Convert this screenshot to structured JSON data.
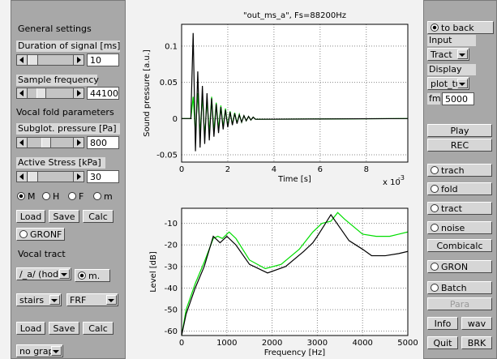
{
  "left_panel": {
    "general_settings": "General settings",
    "duration_label": "Duration of signal [ms]",
    "duration_value": "10",
    "sample_freq_label": "Sample frequency",
    "sample_freq_value": "44100",
    "vocal_fold_title": "Vocal fold parameters",
    "subglot_label": "Subglot. pressure [Pa]",
    "subglot_value": "800",
    "stress_label": "Active Stress [kPa]",
    "stress_value": "30",
    "model_radios": [
      "M",
      "H",
      "F",
      "m"
    ],
    "buttons_1": [
      "Load",
      "Save",
      "Calc"
    ],
    "gronf": "GRONF",
    "vocal_tract_title": "Vocal tract",
    "vowel_popup": "/_a/ (hod)",
    "m_radio": "m.",
    "stairs_popup": "stairs",
    "frf_popup": "FRF",
    "buttons_2": [
      "Load",
      "Save",
      "Calc"
    ],
    "graph_popup": "no graph"
  },
  "right_panel": {
    "to_back": "to back",
    "input_label": "Input",
    "input_popup": "Tract",
    "display_label": "Display",
    "display_popup": "plot_tu",
    "fm_label": "fm",
    "fm_value": "5000",
    "play": "Play",
    "rec": "REC",
    "trach": "trach",
    "fold": "fold",
    "tract": "tract",
    "noise": "noise",
    "combicalc": "Combicalc",
    "gron": "GRON",
    "batch": "Batch",
    "para": "Para",
    "info": "Info",
    "wav": "wav",
    "quit": "Quit",
    "brk": "BRK"
  },
  "chart_data": [
    {
      "type": "line",
      "title": "\"out_ms_a\", Fs=88200Hz",
      "x_label": "Time [s]",
      "y_label": "Sound pressure [a.u.]",
      "x_multiplier": "x 10",
      "x_exponent": "-3",
      "grid": true,
      "xlim": [
        0,
        0.0098
      ],
      "xticks": [
        0,
        {
          "value": 0.002,
          "label": "2"
        },
        {
          "value": 0.004,
          "label": "4"
        },
        {
          "value": 0.006,
          "label": "6"
        },
        {
          "value": 0.008,
          "label": "8"
        }
      ],
      "ylim": [
        -0.06,
        0.13
      ],
      "yticks": [
        -0.05,
        0,
        0.05,
        0.1
      ],
      "x": [
        0,
        0.0004,
        0.0005,
        0.0006,
        0.0007,
        0.0008,
        0.0009,
        0.001,
        0.0011,
        0.0012,
        0.0013,
        0.0014,
        0.0015,
        0.0016,
        0.0017,
        0.0018,
        0.0019,
        0.002,
        0.0021,
        0.0022,
        0.0023,
        0.0024,
        0.0025,
        0.0026,
        0.0027,
        0.0028,
        0.0029,
        0.003,
        0.0031,
        0.0032,
        0.0098
      ],
      "series": [
        {
          "color": "#00dd00",
          "values": [
            0,
            0,
            0.03,
            -0.02,
            0.035,
            -0.02,
            0.03,
            -0.025,
            0.025,
            -0.02,
            0.03,
            -0.018,
            0.022,
            -0.015,
            0.018,
            -0.012,
            0.014,
            -0.01,
            0.01,
            -0.008,
            0.008,
            -0.006,
            0.006,
            -0.005,
            0.004,
            -0.003,
            0.003,
            -0.002,
            0.002,
            -0.001,
            0
          ]
        },
        {
          "color": "#000000",
          "values": [
            0,
            0,
            0.118,
            -0.045,
            0.065,
            -0.04,
            0.045,
            -0.035,
            0.035,
            -0.03,
            0.028,
            -0.025,
            0.02,
            -0.02,
            0.016,
            -0.015,
            0.012,
            -0.012,
            0.009,
            -0.009,
            0.007,
            -0.007,
            0.005,
            -0.005,
            0.004,
            -0.003,
            0.003,
            -0.002,
            0.002,
            -0.001,
            0
          ]
        }
      ]
    },
    {
      "type": "line",
      "x_label": "Frequency [Hz]",
      "y_label": "Level [dB]",
      "grid": true,
      "xlim": [
        0,
        5000
      ],
      "xticks": [
        0,
        1000,
        2000,
        3000,
        4000,
        5000
      ],
      "ylim": [
        -62,
        -3
      ],
      "yticks": [
        -60,
        -50,
        -40,
        -30,
        -20,
        -10
      ],
      "series": [
        {
          "color": "#00dd00",
          "x": [
            0,
            100,
            300,
            500,
            700,
            800,
            900,
            1050,
            1200,
            1500,
            1850,
            2200,
            2600,
            2900,
            3100,
            3300,
            3450,
            3600,
            4000,
            4300,
            4600,
            4800,
            5000
          ],
          "values": [
            -62,
            -50,
            -38,
            -28,
            -17,
            -16,
            -17,
            -14,
            -17,
            -27,
            -31,
            -29,
            -22,
            -14,
            -10,
            -9,
            -5,
            -8,
            -15,
            -16,
            -16,
            -15,
            -14
          ]
        },
        {
          "color": "#000000",
          "x": [
            0,
            100,
            300,
            500,
            700,
            850,
            1000,
            1200,
            1500,
            1900,
            2300,
            2700,
            2900,
            3000,
            3150,
            3300,
            3500,
            3700,
            4000,
            4200,
            4500,
            4800,
            5000
          ],
          "values": [
            -62,
            -52,
            -40,
            -30,
            -16,
            -19,
            -16,
            -20,
            -29,
            -33,
            -30,
            -23,
            -19,
            -16,
            -11,
            -6,
            -12,
            -18,
            -22,
            -25,
            -25,
            -24,
            -23
          ]
        }
      ]
    }
  ]
}
